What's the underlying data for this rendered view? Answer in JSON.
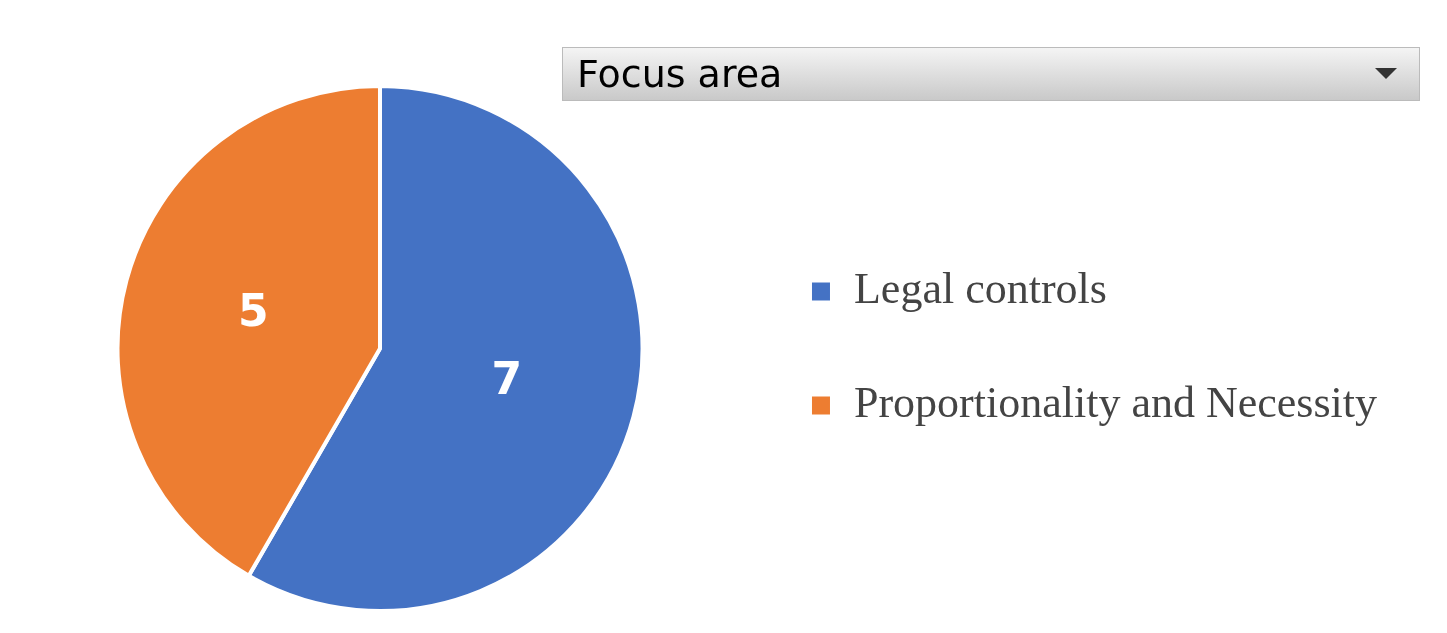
{
  "chart_data": {
    "type": "pie",
    "legend_title": "Focus area",
    "categories": [
      "Legal controls",
      "Proportionality and Necessity"
    ],
    "values": [
      7,
      5
    ],
    "colors": [
      "#4472c4",
      "#ed7d31"
    ],
    "data_labels": true,
    "legend": "right"
  }
}
